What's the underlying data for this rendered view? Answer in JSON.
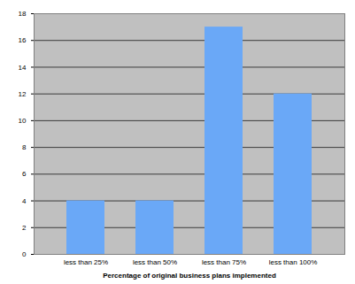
{
  "chart_data": {
    "type": "bar",
    "x_label": "Percentage of original business plans implemented",
    "categories": [
      "less than 25%",
      "less than 50%",
      "less than 75%",
      "less than 100%"
    ],
    "values": [
      4,
      4,
      17,
      12
    ],
    "color": "#6aa8f7",
    "ylim": [
      0,
      18
    ],
    "yticks": [
      0,
      2,
      4,
      6,
      8,
      10,
      12,
      14,
      16,
      18
    ],
    "grid": true
  }
}
